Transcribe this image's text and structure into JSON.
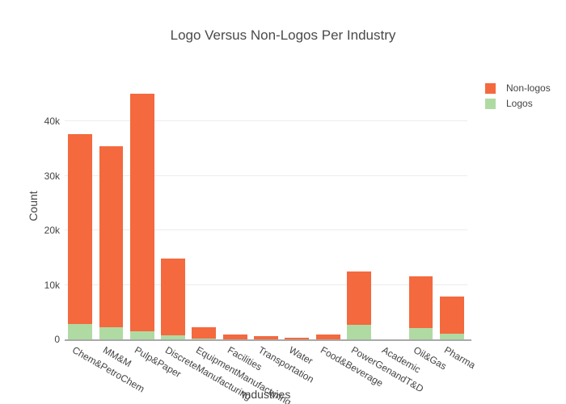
{
  "chart_data": {
    "type": "bar",
    "stacked": true,
    "title": "Logo Versus Non-Logos Per Industry",
    "xlabel": "Industries",
    "ylabel": "Count",
    "categories": [
      "Chem&PetroChem",
      "MM&M",
      "Pulp&Paper",
      "DiscreteManufacturing",
      "EquipmentManufacturing",
      "Facilities",
      "Transportation",
      "Water",
      "Food&Beverage",
      "PowerGenandT&D",
      "Academic",
      "Oil&Gas",
      "Pharma"
    ],
    "series": [
      {
        "name": "Non-logos",
        "color": "#F4693E",
        "values": [
          34800,
          33200,
          43500,
          14100,
          2150,
          900,
          550,
          300,
          850,
          9800,
          50,
          9400,
          6900
        ]
      },
      {
        "name": "Logos",
        "color": "#AFDBA3",
        "values": [
          2800,
          2200,
          1500,
          700,
          150,
          60,
          50,
          40,
          60,
          2700,
          20,
          2100,
          1000
        ]
      }
    ],
    "stack_order_bottom_to_top": [
      "Logos",
      "Non-logos"
    ],
    "ylim": [
      0,
      48900
    ],
    "yticks": {
      "values": [
        0,
        10000,
        20000,
        30000,
        40000
      ],
      "labels": [
        "0",
        "10k",
        "20k",
        "30k",
        "40k"
      ]
    },
    "grid": true,
    "legend_position": "top-right",
    "background": "#ffffff"
  }
}
